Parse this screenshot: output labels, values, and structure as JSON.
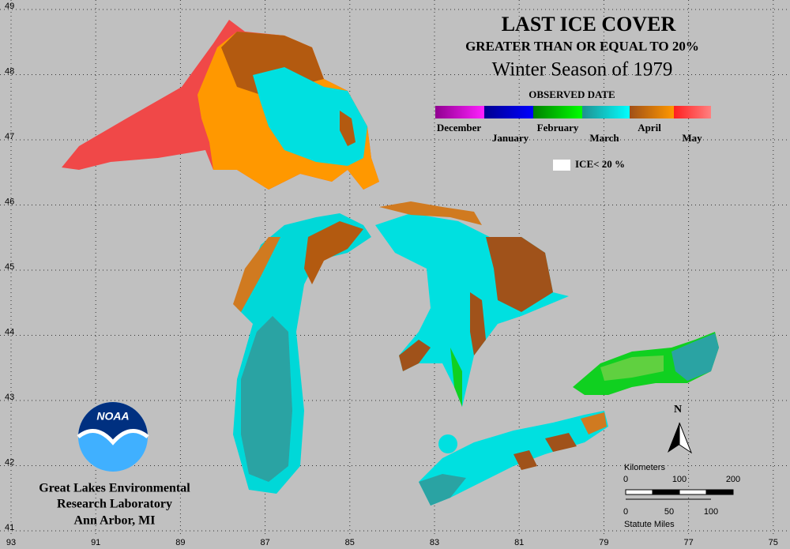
{
  "title": "LAST ICE COVER",
  "subtitle": "GREATER THAN OR EQUAL TO 20%",
  "season": "Winter Season of 1979",
  "legend": {
    "title": "OBSERVED DATE",
    "months": [
      "December",
      "January",
      "February",
      "March",
      "April",
      "May"
    ]
  },
  "ice_note": "ICE< 20 %",
  "longitudes": [
    "93",
    "91",
    "89",
    "87",
    "85",
    "83",
    "81",
    "79",
    "77",
    "75"
  ],
  "latitudes": [
    "49",
    "48",
    "47",
    "46",
    "45",
    "44",
    "43",
    "42",
    "41"
  ],
  "logo": "NOAA",
  "lab": [
    "Great Lakes Environmental",
    "Research Laboratory",
    "Ann Arbor, MI"
  ],
  "north": "N",
  "scale": {
    "km_label": "Kilometers",
    "km": [
      "0",
      "100",
      "200"
    ],
    "mi_label": "Statute Miles",
    "mi": [
      "0",
      "50",
      "100"
    ]
  }
}
